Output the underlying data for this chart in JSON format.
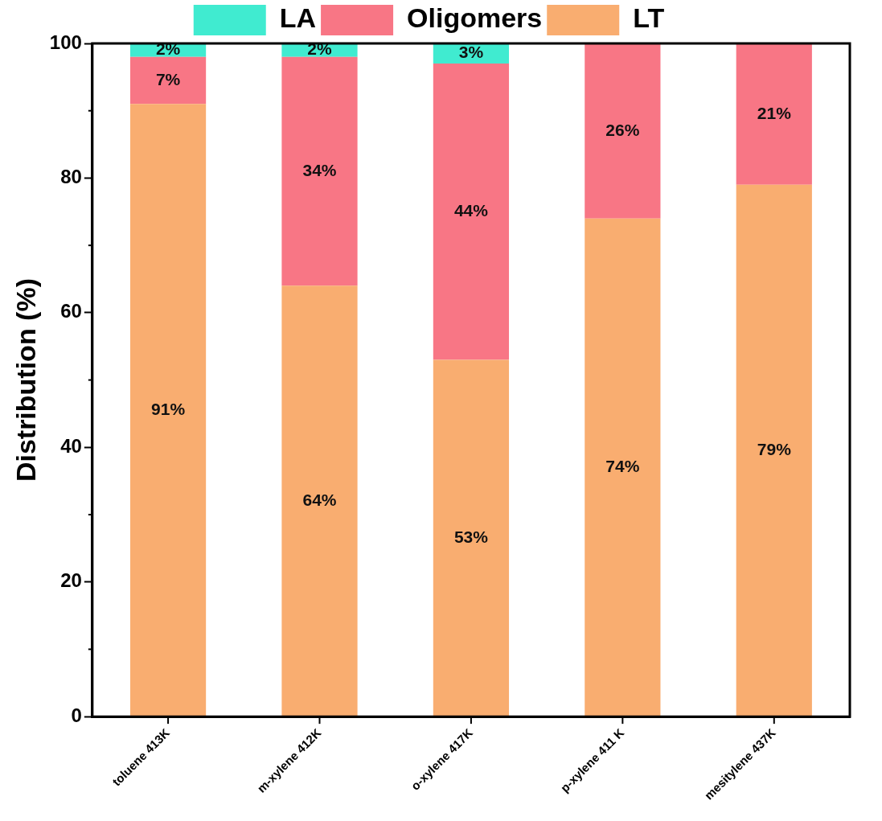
{
  "chart_data": {
    "type": "bar",
    "stacked": true,
    "ylabel": "Distribution (%)",
    "categories": [
      "toluene 413K",
      "m-xylene 412K",
      "o-xylene 417K",
      "p-xylene 411 K",
      "mesitylene 437K"
    ],
    "series": [
      {
        "name": "LT",
        "color": "#f9ad70",
        "values": [
          91,
          64,
          53,
          74,
          79
        ],
        "value_labels": [
          "91%",
          "64%",
          "53%",
          "74%",
          "79%"
        ]
      },
      {
        "name": "Oligomers",
        "color": "#f87685",
        "values": [
          7,
          34,
          44,
          26,
          21
        ],
        "value_labels": [
          "7%",
          "34%",
          "44%",
          "26%",
          "21%"
        ]
      },
      {
        "name": "LA",
        "color": "#40ebd0",
        "values": [
          2,
          2,
          3,
          null,
          null
        ],
        "value_labels": [
          "2%",
          "2%",
          "3%",
          null,
          null
        ]
      }
    ],
    "ylim": [
      0,
      100
    ],
    "yticks": [
      0,
      20,
      40,
      60,
      80,
      100
    ],
    "grid": false,
    "legend": "top"
  }
}
